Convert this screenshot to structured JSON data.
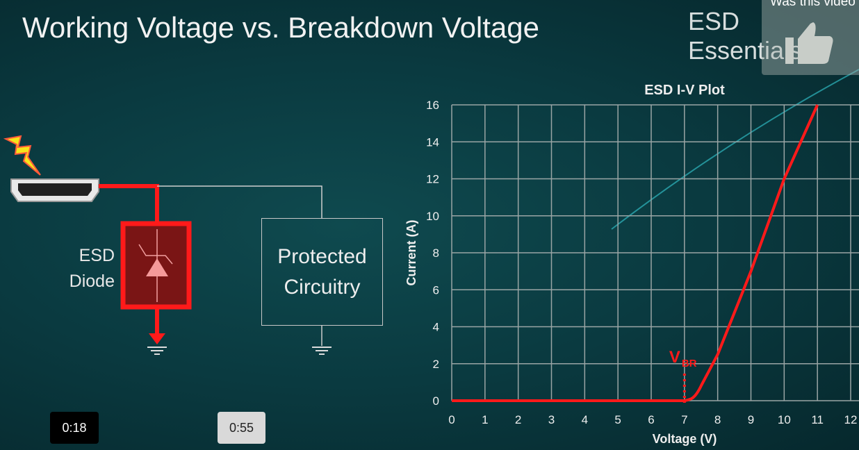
{
  "slide": {
    "title": "Working Voltage vs. Breakdown Voltage",
    "brand": "ESD Essentials",
    "diode_label_1": "ESD",
    "diode_label_2": "Diode",
    "protected_1": "Protected",
    "protected_2": "Circuitry"
  },
  "player": {
    "feedback_question": "Was this video",
    "feedback_icon": "thumbs-up-icon",
    "time_current": "0:18",
    "time_end": "0:55"
  },
  "colors": {
    "curve": "#ff1a1a",
    "grid": "#9aa5a5",
    "background": "#0a3a40"
  },
  "chart_data": {
    "type": "line",
    "title": "ESD I-V Plot",
    "xlabel": "Voltage (V)",
    "ylabel": "Current (A)",
    "xlim": [
      0,
      12
    ],
    "ylim": [
      0,
      16
    ],
    "grid": true,
    "xticks": [
      0,
      1,
      2,
      3,
      4,
      5,
      6,
      7,
      8,
      9,
      10,
      11,
      12
    ],
    "yticks": [
      0,
      2,
      4,
      6,
      8,
      10,
      12,
      14,
      16
    ],
    "series": [
      {
        "x": [
          0,
          7,
          7.2,
          7.5,
          8,
          9,
          10,
          11
        ],
        "y": [
          0,
          0,
          0.1,
          0.8,
          2.5,
          7,
          12,
          16
        ]
      }
    ],
    "annotations": [
      {
        "text": "V",
        "subscript": "BR",
        "x": 7
      }
    ]
  }
}
